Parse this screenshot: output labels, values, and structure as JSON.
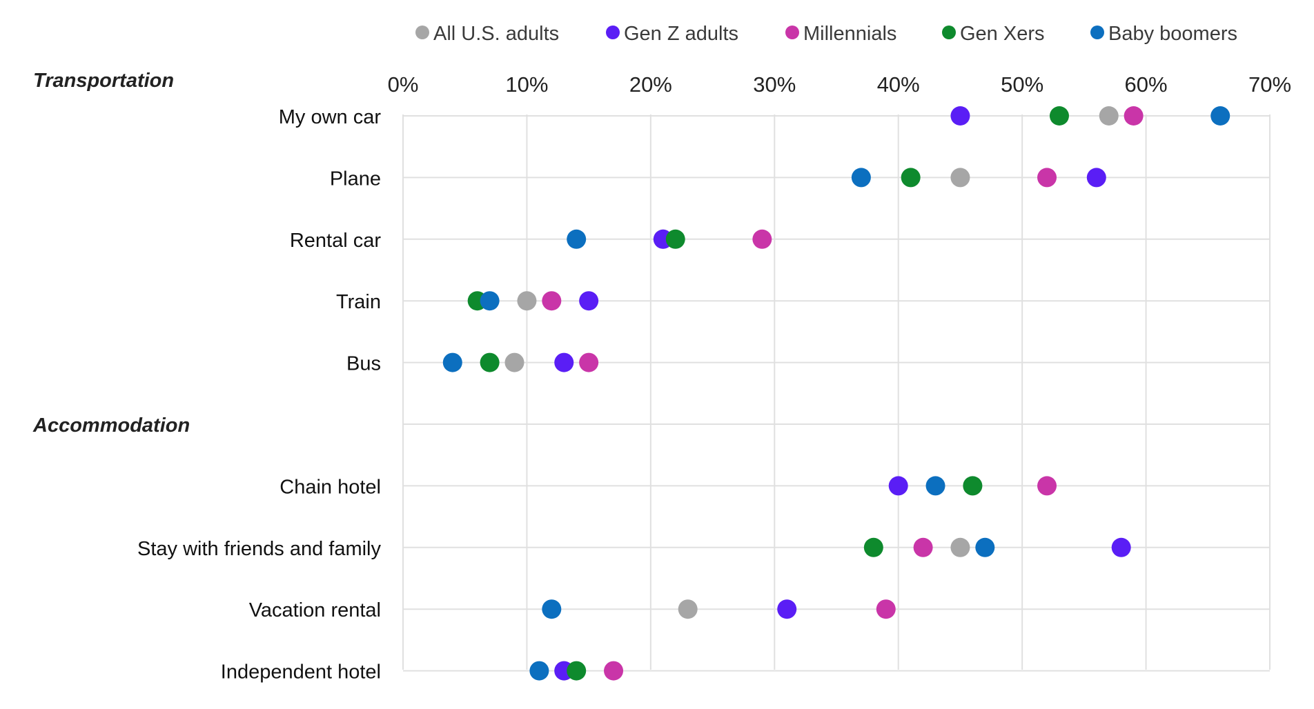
{
  "chart_data": {
    "type": "scatter",
    "title": "",
    "xlabel": "",
    "ylabel": "",
    "xlim": [
      0,
      70
    ],
    "x_ticks": [
      0,
      10,
      20,
      30,
      40,
      50,
      60,
      70
    ],
    "x_tick_labels": [
      "0%",
      "10%",
      "20%",
      "30%",
      "40%",
      "50%",
      "60%",
      "70%"
    ],
    "grid": true,
    "legend_position": "top",
    "groups": [
      {
        "label": "Transportation",
        "categories": [
          "My own car",
          "Plane",
          "Rental car",
          "Train",
          "Bus"
        ]
      },
      {
        "label": "Accommodation",
        "categories": [
          "Chain hotel",
          "Stay with friends and family",
          "Vacation rental",
          "Independent hotel"
        ]
      }
    ],
    "categories": [
      "My own car",
      "Plane",
      "Rental car",
      "Train",
      "Bus",
      "Chain hotel",
      "Stay with friends and family",
      "Vacation rental",
      "Independent hotel"
    ],
    "series": [
      {
        "name": "All U.S. adults",
        "color": "#a6a6a6",
        "values": [
          57,
          45,
          21,
          10,
          9,
          46,
          45,
          23,
          13
        ]
      },
      {
        "name": "Gen Z adults",
        "color": "#5a1ef5",
        "values": [
          45,
          56,
          21,
          15,
          13,
          40,
          58,
          31,
          13
        ]
      },
      {
        "name": "Millennials",
        "color": "#c935a8",
        "values": [
          59,
          52,
          29,
          12,
          15,
          52,
          42,
          39,
          17
        ]
      },
      {
        "name": "Gen Xers",
        "color": "#0e8a2d",
        "values": [
          53,
          41,
          22,
          6,
          7,
          46,
          38,
          null,
          14
        ]
      },
      {
        "name": "Baby boomers",
        "color": "#0c6fbf",
        "values": [
          66,
          37,
          14,
          7,
          4,
          43,
          47,
          12,
          11
        ]
      }
    ]
  }
}
